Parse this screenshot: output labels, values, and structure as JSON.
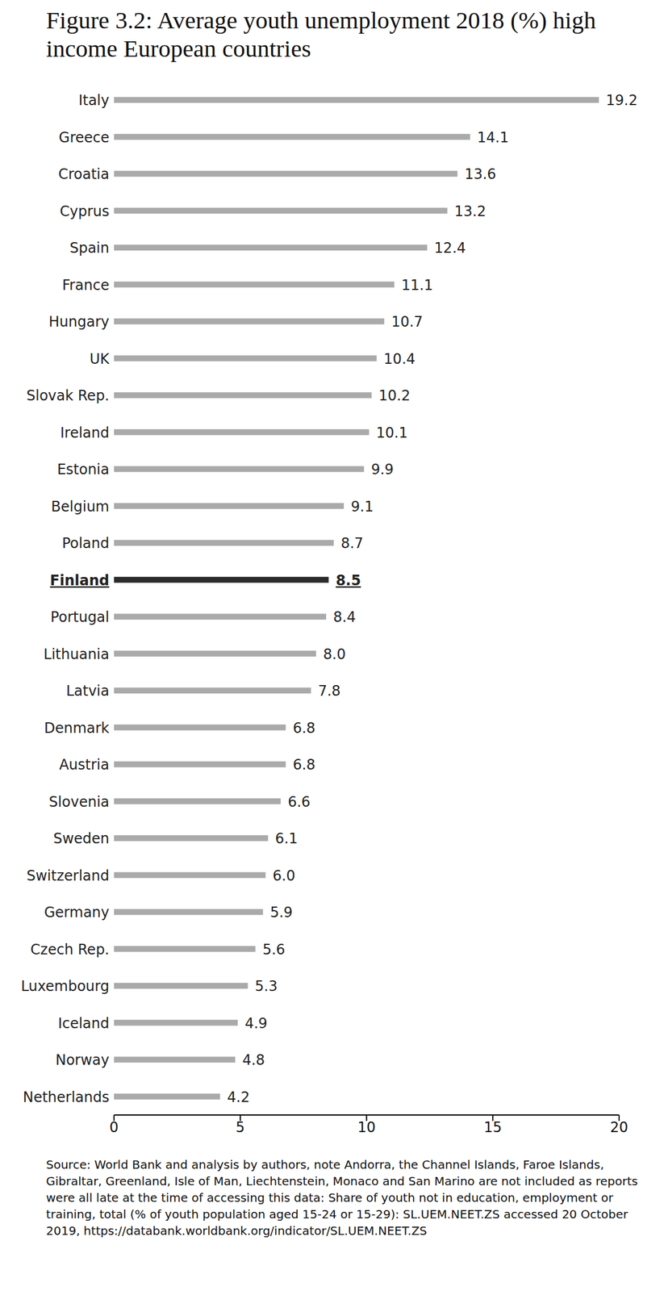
{
  "chart_data": {
    "type": "bar",
    "title": "Figure 3.2: Average youth unemployment 2018 (%) high income European countries",
    "orientation": "horizontal",
    "categories": [
      "Italy",
      "Greece",
      "Croatia",
      "Cyprus",
      "Spain",
      "France",
      "Hungary",
      "UK",
      "Slovak Rep.",
      "Ireland",
      "Estonia",
      "Belgium",
      "Poland",
      "Finland",
      "Portugal",
      "Lithuania",
      "Latvia",
      "Denmark",
      "Austria",
      "Slovenia",
      "Sweden",
      "Switzerland",
      "Germany",
      "Czech Rep.",
      "Luxembourg",
      "Iceland",
      "Norway",
      "Netherlands"
    ],
    "values": [
      19.2,
      14.1,
      13.6,
      13.2,
      12.4,
      11.1,
      10.7,
      10.4,
      10.2,
      10.1,
      9.9,
      9.1,
      8.7,
      8.5,
      8.4,
      8.0,
      7.8,
      6.8,
      6.8,
      6.6,
      6.1,
      6.0,
      5.9,
      5.6,
      5.3,
      4.9,
      4.8,
      4.2
    ],
    "value_labels": [
      "19.2",
      "14.1",
      "13.6",
      "13.2",
      "12.4",
      "11.1",
      "10.7",
      "10.4",
      "10.2",
      "10.1",
      "9.9",
      "9.1",
      "8.7",
      "8.5",
      "8.4",
      "8.0",
      "7.8",
      "6.8",
      "6.8",
      "6.6",
      "6.1",
      "6.0",
      "5.9",
      "5.6",
      "5.3",
      "4.9",
      "4.8",
      "4.2"
    ],
    "colors": [
      "#aaaaaa",
      "#aaaaaa",
      "#aaaaaa",
      "#aaaaaa",
      "#aaaaaa",
      "#aaaaaa",
      "#aaaaaa",
      "#aaaaaa",
      "#aaaaaa",
      "#aaaaaa",
      "#aaaaaa",
      "#aaaaaa",
      "#aaaaaa",
      "#2b2b2b",
      "#aaaaaa",
      "#aaaaaa",
      "#aaaaaa",
      "#aaaaaa",
      "#aaaaaa",
      "#aaaaaa",
      "#aaaaaa",
      "#aaaaaa",
      "#aaaaaa",
      "#aaaaaa",
      "#aaaaaa",
      "#aaaaaa",
      "#aaaaaa",
      "#aaaaaa"
    ],
    "xlim": [
      0,
      20
    ],
    "xticks": [
      0,
      5,
      10,
      15,
      20
    ],
    "grid": false,
    "data_labels": true,
    "note": "Source: World Bank and analysis by authors, note Andorra, the Channel Islands, Faroe Islands, Gibraltar, Greenland, Isle of Man, Liechtenstein, Monaco and San Marino are not included as reports were all late at the time of accessing this data: Share of youth not in education, employment or training, total (% of youth population aged 15-24 or 15-29): SL.UEM.NEET.ZS accessed 20 October 2019, https://databank.worldbank.org/indicator/SL.UEM.NEET.ZS"
  }
}
